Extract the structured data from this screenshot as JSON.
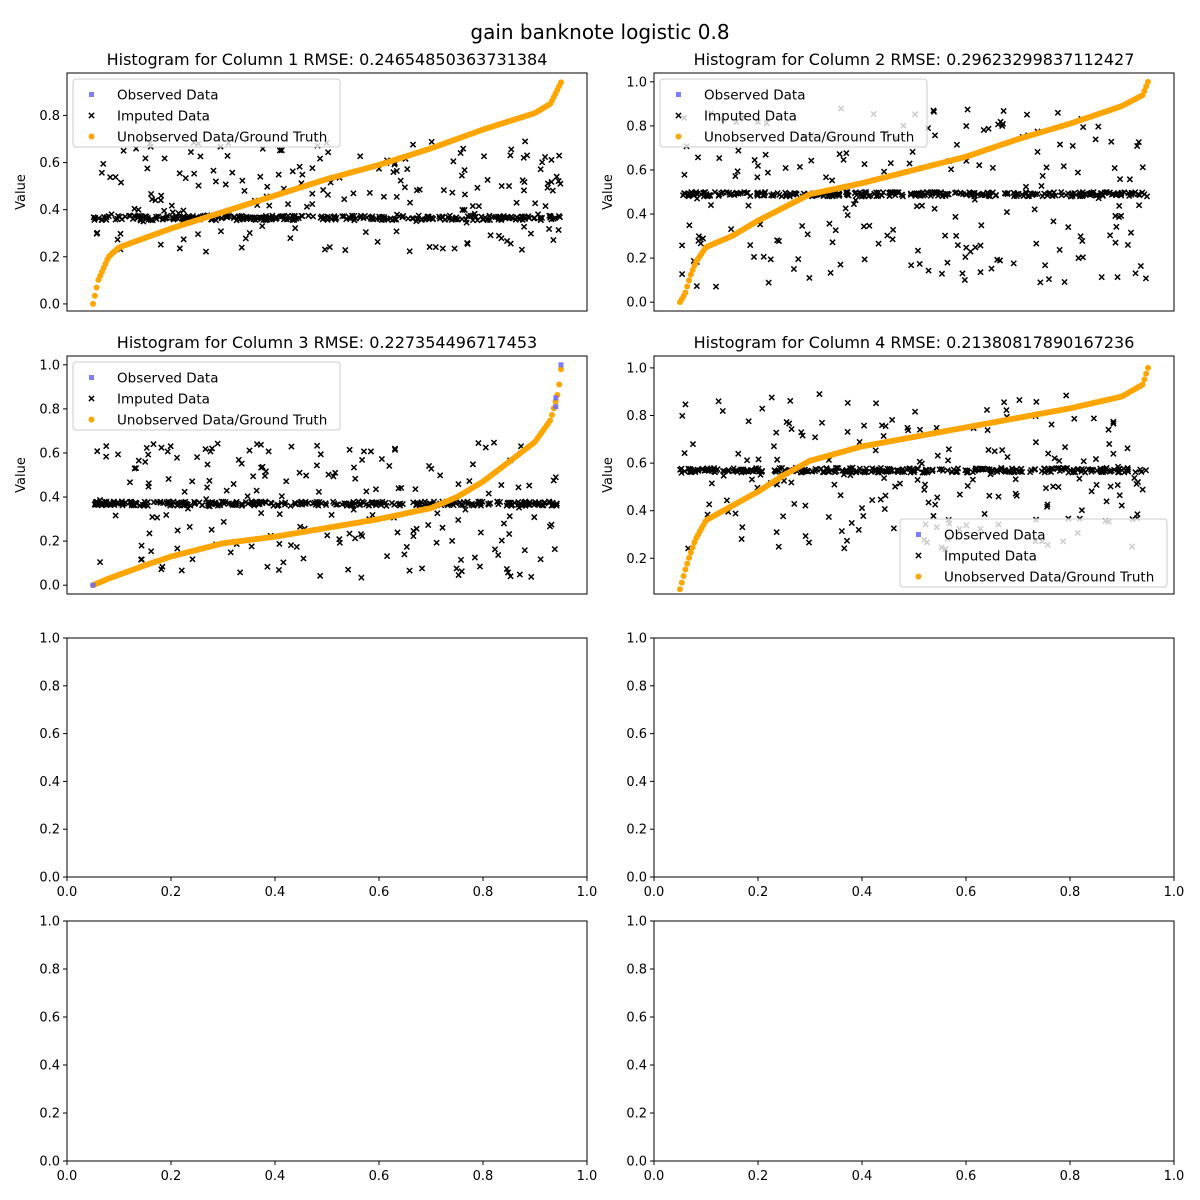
{
  "figure": {
    "title": "gain banknote logistic 0.8"
  },
  "colors": {
    "observed": "#6666ff",
    "imputed": "#000000",
    "ground_truth": "#ffa500"
  },
  "legend_labels": [
    "Observed Data",
    "Imputed Data",
    "Unobserved Data/Ground Truth"
  ],
  "chart_data": [
    {
      "type": "scatter",
      "title": "Histogram for Column 1 RMSE: 0.24654850363731384",
      "ylabel": "Value",
      "xlim": [
        0,
        1
      ],
      "ylim": [
        -0.03,
        0.98
      ],
      "yticks": [
        "0.0",
        "0.2",
        "0.4",
        "0.6",
        "0.8"
      ],
      "show_xticks": false,
      "legend_position": "upper left",
      "imputed_band": 0.365,
      "imputed_spread": [
        0.22,
        0.69
      ],
      "ground_truth_curve": [
        [
          0.05,
          0.0
        ],
        [
          0.055,
          0.05
        ],
        [
          0.06,
          0.1
        ],
        [
          0.07,
          0.15
        ],
        [
          0.08,
          0.2
        ],
        [
          0.1,
          0.24
        ],
        [
          0.15,
          0.28
        ],
        [
          0.2,
          0.32
        ],
        [
          0.3,
          0.39
        ],
        [
          0.4,
          0.46
        ],
        [
          0.5,
          0.53
        ],
        [
          0.6,
          0.59
        ],
        [
          0.7,
          0.66
        ],
        [
          0.8,
          0.74
        ],
        [
          0.9,
          0.81
        ],
        [
          0.93,
          0.85
        ],
        [
          0.95,
          0.94
        ]
      ],
      "observed_points": []
    },
    {
      "type": "scatter",
      "title": "Histogram for Column 2 RMSE: 0.29623299837112427",
      "ylabel": "Value",
      "xlim": [
        0,
        1
      ],
      "ylim": [
        -0.04,
        1.04
      ],
      "yticks": [
        "0.0",
        "0.2",
        "0.4",
        "0.6",
        "0.8",
        "1.0"
      ],
      "show_xticks": false,
      "legend_position": "upper left",
      "imputed_band": 0.49,
      "imputed_spread": [
        0.07,
        0.88
      ],
      "ground_truth_curve": [
        [
          0.05,
          0.0
        ],
        [
          0.06,
          0.04
        ],
        [
          0.07,
          0.12
        ],
        [
          0.08,
          0.18
        ],
        [
          0.1,
          0.25
        ],
        [
          0.15,
          0.3
        ],
        [
          0.2,
          0.37
        ],
        [
          0.25,
          0.43
        ],
        [
          0.3,
          0.49
        ],
        [
          0.4,
          0.54
        ],
        [
          0.5,
          0.6
        ],
        [
          0.6,
          0.66
        ],
        [
          0.7,
          0.74
        ],
        [
          0.8,
          0.81
        ],
        [
          0.9,
          0.89
        ],
        [
          0.94,
          0.94
        ],
        [
          0.95,
          1.0
        ]
      ],
      "observed_points": []
    },
    {
      "type": "scatter",
      "title": "Histogram for Column 3 RMSE: 0.227354496717453",
      "ylabel": "Value",
      "xlim": [
        0,
        1
      ],
      "ylim": [
        -0.04,
        1.04
      ],
      "yticks": [
        "0.0",
        "0.2",
        "0.4",
        "0.6",
        "0.8",
        "1.0"
      ],
      "show_xticks": false,
      "legend_position": "upper left",
      "imputed_band": 0.37,
      "imputed_spread": [
        0.03,
        0.65
      ],
      "ground_truth_curve": [
        [
          0.05,
          0.0
        ],
        [
          0.08,
          0.03
        ],
        [
          0.15,
          0.09
        ],
        [
          0.2,
          0.13
        ],
        [
          0.3,
          0.19
        ],
        [
          0.4,
          0.22
        ],
        [
          0.5,
          0.26
        ],
        [
          0.6,
          0.3
        ],
        [
          0.7,
          0.35
        ],
        [
          0.75,
          0.4
        ],
        [
          0.8,
          0.47
        ],
        [
          0.85,
          0.56
        ],
        [
          0.9,
          0.65
        ],
        [
          0.93,
          0.75
        ],
        [
          0.945,
          0.88
        ],
        [
          0.95,
          0.98
        ]
      ],
      "observed_points": [
        [
          0.05,
          0.0
        ],
        [
          0.94,
          0.81
        ],
        [
          0.94,
          0.85
        ],
        [
          0.95,
          1.0
        ]
      ]
    },
    {
      "type": "scatter",
      "title": "Histogram for Column 4 RMSE: 0.21380817890167236",
      "ylabel": "Value",
      "xlim": [
        0,
        1
      ],
      "ylim": [
        0.05,
        1.05
      ],
      "yticks": [
        "0.2",
        "0.4",
        "0.6",
        "0.8",
        "1.0"
      ],
      "show_xticks": false,
      "legend_position": "lower right",
      "imputed_band": 0.57,
      "imputed_spread": [
        0.23,
        0.89
      ],
      "ground_truth_curve": [
        [
          0.05,
          0.07
        ],
        [
          0.06,
          0.15
        ],
        [
          0.07,
          0.22
        ],
        [
          0.08,
          0.28
        ],
        [
          0.1,
          0.36
        ],
        [
          0.15,
          0.42
        ],
        [
          0.2,
          0.48
        ],
        [
          0.25,
          0.55
        ],
        [
          0.3,
          0.61
        ],
        [
          0.4,
          0.67
        ],
        [
          0.5,
          0.71
        ],
        [
          0.6,
          0.75
        ],
        [
          0.7,
          0.79
        ],
        [
          0.8,
          0.83
        ],
        [
          0.9,
          0.88
        ],
        [
          0.94,
          0.93
        ],
        [
          0.95,
          1.0
        ]
      ],
      "observed_points": []
    },
    {
      "type": "scatter",
      "title": "",
      "xlim": [
        0,
        1
      ],
      "ylim": [
        0,
        1
      ],
      "xticks": [
        "0.0",
        "0.2",
        "0.4",
        "0.6",
        "0.8",
        "1.0"
      ],
      "yticks": [
        "0.0",
        "0.2",
        "0.4",
        "0.6",
        "0.8",
        "1.0"
      ],
      "show_xticks": true,
      "empty": true
    },
    {
      "type": "scatter",
      "title": "",
      "xlim": [
        0,
        1
      ],
      "ylim": [
        0,
        1
      ],
      "xticks": [
        "0.0",
        "0.2",
        "0.4",
        "0.6",
        "0.8",
        "1.0"
      ],
      "yticks": [
        "0.0",
        "0.2",
        "0.4",
        "0.6",
        "0.8",
        "1.0"
      ],
      "show_xticks": true,
      "empty": true
    },
    {
      "type": "scatter",
      "title": "",
      "xlim": [
        0,
        1
      ],
      "ylim": [
        0,
        1
      ],
      "xticks": [
        "0.0",
        "0.2",
        "0.4",
        "0.6",
        "0.8",
        "1.0"
      ],
      "yticks": [
        "0.0",
        "0.2",
        "0.4",
        "0.6",
        "0.8",
        "1.0"
      ],
      "show_xticks": true,
      "empty": true
    },
    {
      "type": "scatter",
      "title": "",
      "xlim": [
        0,
        1
      ],
      "ylim": [
        0,
        1
      ],
      "xticks": [
        "0.0",
        "0.2",
        "0.4",
        "0.6",
        "0.8",
        "1.0"
      ],
      "yticks": [
        "0.0",
        "0.2",
        "0.4",
        "0.6",
        "0.8",
        "1.0"
      ],
      "show_xticks": true,
      "empty": true
    }
  ]
}
